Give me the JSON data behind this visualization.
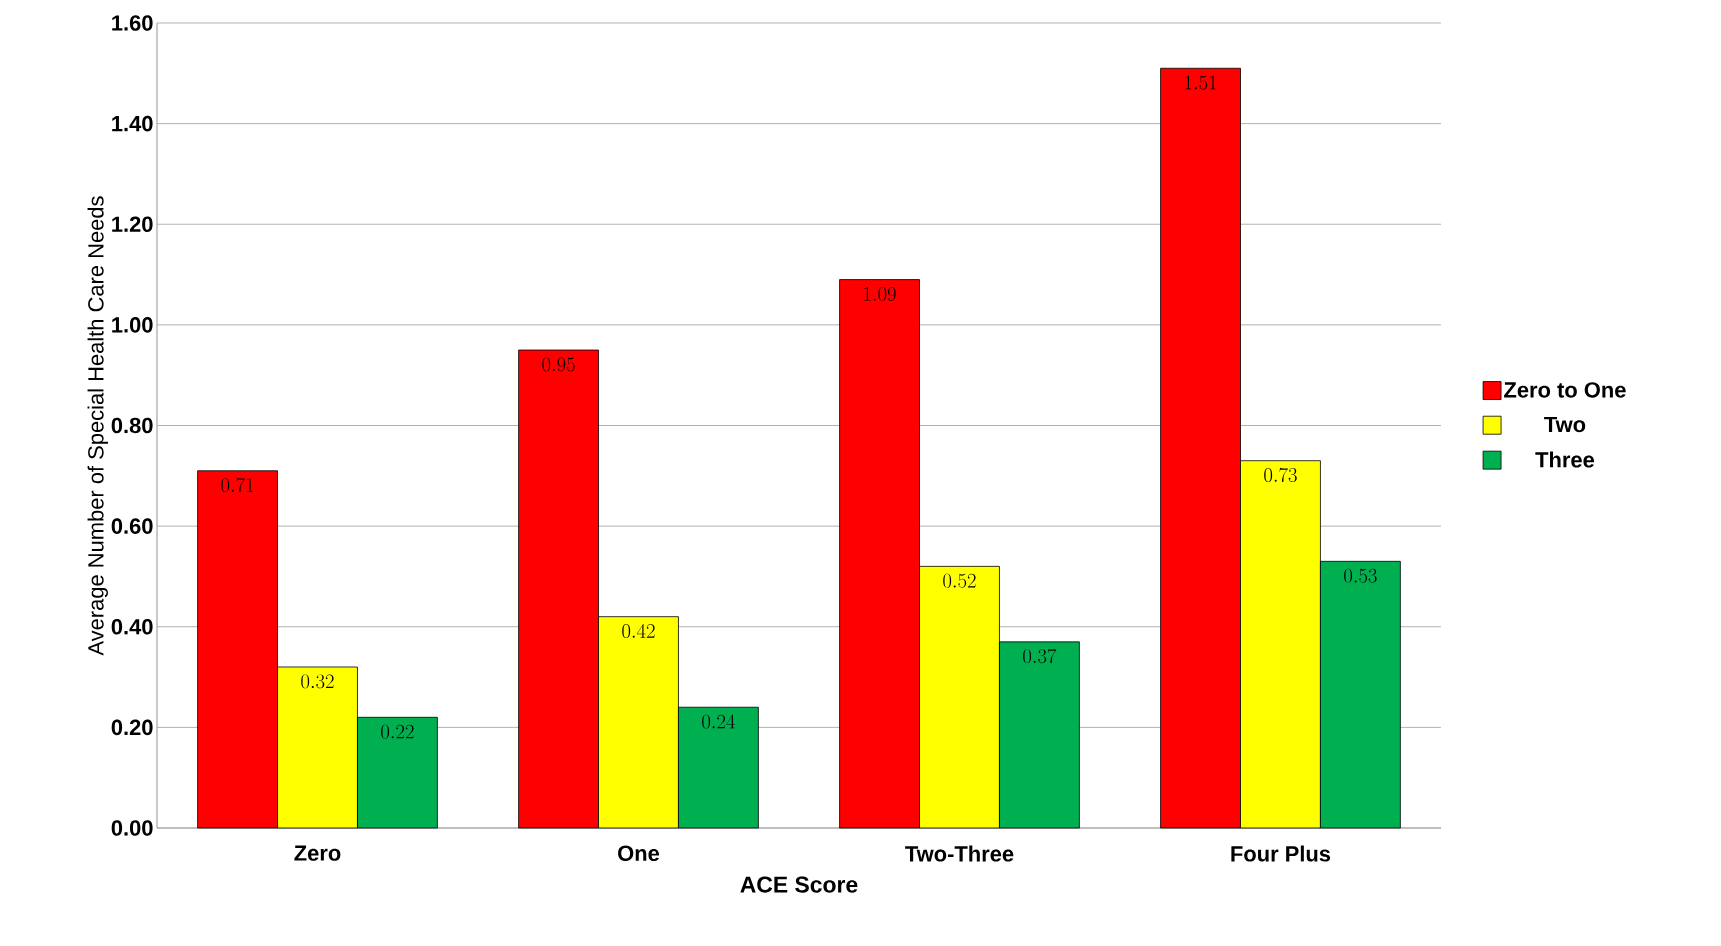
{
  "chart_data": {
    "type": "bar",
    "xlabel": "ACE Score",
    "ylabel": "Average Number of Special Health Care Needs",
    "categories": [
      "Zero",
      "One",
      "Two-Three",
      "Four Plus"
    ],
    "series": [
      {
        "name": "Zero to One",
        "color": "#ff0000",
        "values": [
          0.71,
          0.95,
          1.09,
          1.51
        ]
      },
      {
        "name": "Two",
        "color": "#ffff00",
        "values": [
          0.32,
          0.42,
          0.52,
          0.73
        ]
      },
      {
        "name": "Three",
        "color": "#00b050",
        "values": [
          0.22,
          0.24,
          0.37,
          0.53
        ]
      }
    ],
    "ylim": [
      0,
      1.6
    ],
    "yticks": [
      {
        "value": 0,
        "label": "0.00"
      },
      {
        "value": 0.2,
        "label": "0.20"
      },
      {
        "value": 0.4,
        "label": "0.40"
      },
      {
        "value": 0.6,
        "label": "0.60"
      },
      {
        "value": 0.8,
        "label": "0.80"
      },
      {
        "value": 1.0,
        "label": "1.00"
      },
      {
        "value": 1.2,
        "label": "1.20"
      },
      {
        "value": 1.4,
        "label": "1.40"
      },
      {
        "value": 1.6,
        "label": "1.60"
      }
    ],
    "grid": "y",
    "legend": "right",
    "data_labels": true
  }
}
